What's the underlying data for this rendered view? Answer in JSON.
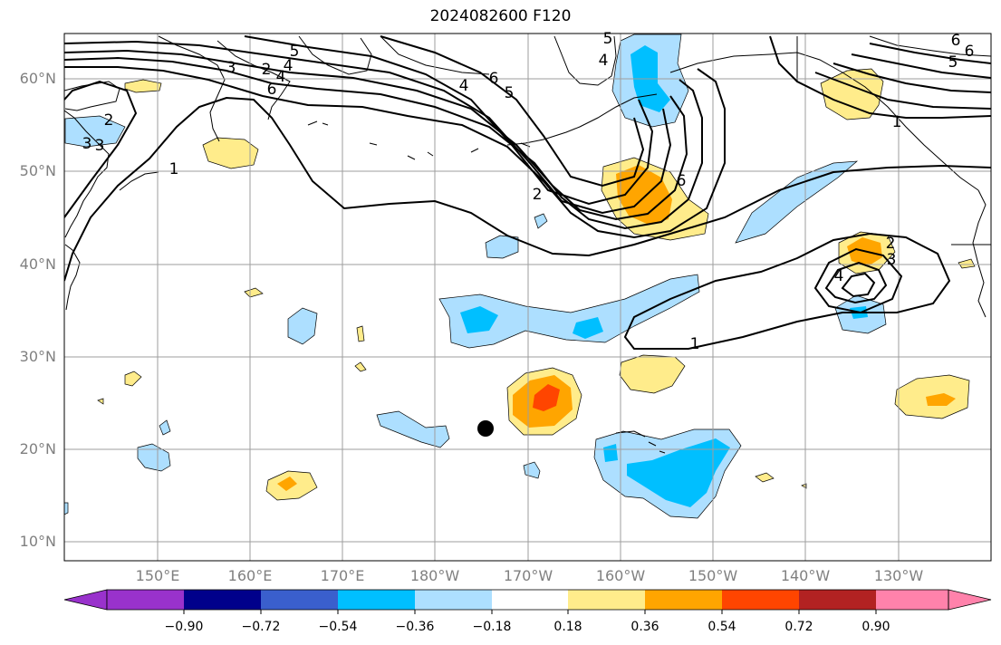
{
  "title": "2024082600 F120",
  "map": {
    "lat_labels": [
      "60°N",
      "50°N",
      "40°N",
      "30°N",
      "20°N",
      "10°N"
    ],
    "lon_labels": [
      "150°E",
      "160°E",
      "170°E",
      "180°W",
      "170°W",
      "160°W",
      "150°W",
      "140°W",
      "130°W"
    ],
    "contour_labels": [
      "1",
      "2",
      "3",
      "4",
      "5",
      "6",
      "2",
      "3",
      "4",
      "5",
      "6",
      "2",
      "4",
      "5",
      "6",
      "6",
      "4",
      "3",
      "1",
      "2",
      "3",
      "4",
      "1",
      "5",
      "6"
    ],
    "marker": "storm-center-dot",
    "contour_color": "#000000",
    "land_color": "#000000"
  },
  "colorbar": {
    "ticks": [
      "−0.90",
      "−0.72",
      "−0.54",
      "−0.36",
      "−0.18",
      "0.18",
      "0.36",
      "0.54",
      "0.72",
      "0.90"
    ],
    "colors": [
      "#9932CC",
      "#00008B",
      "#3A5FCD",
      "#00BFFF",
      "#ADDFFF",
      "#FFFFFF",
      "#FFEC8B",
      "#FFA500",
      "#FF4500",
      "#B22222",
      "#FF82AB"
    ]
  }
}
